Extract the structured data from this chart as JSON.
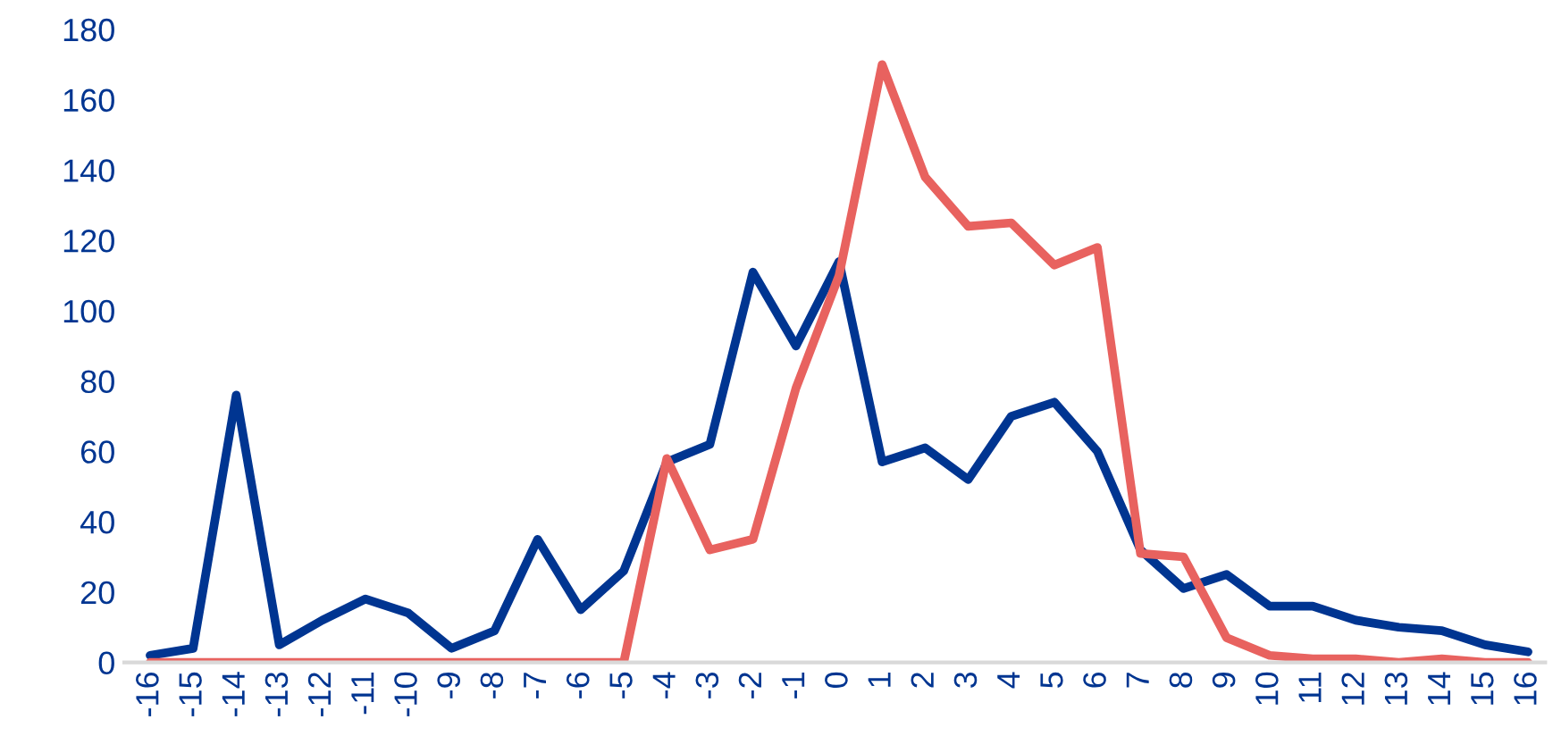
{
  "chart_data": {
    "type": "line",
    "categories": [
      "-16",
      "-15",
      "-14",
      "-13",
      "-12",
      "-11",
      "-10",
      "-9",
      "-8",
      "-7",
      "-6",
      "-5",
      "-4",
      "-3",
      "-2",
      "-1",
      "0",
      "1",
      "2",
      "3",
      "4",
      "5",
      "6",
      "7",
      "8",
      "9",
      "10",
      "11",
      "12",
      "13",
      "14",
      "15",
      "16"
    ],
    "series": [
      {
        "color": "#003591",
        "values": [
          2,
          4,
          76,
          5,
          12,
          18,
          14,
          4,
          9,
          35,
          15,
          26,
          57,
          62,
          111,
          90,
          114,
          57,
          61,
          52,
          70,
          74,
          60,
          32,
          21,
          25,
          16,
          16,
          12,
          10,
          9,
          5,
          3
        ]
      },
      {
        "color": "#e8625f",
        "values": [
          0,
          0,
          0,
          0,
          0,
          0,
          0,
          0,
          0,
          0,
          0,
          0,
          58,
          32,
          35,
          78,
          110,
          170,
          138,
          124,
          125,
          113,
          118,
          31,
          30,
          7,
          2,
          1,
          1,
          0,
          1,
          0,
          0
        ]
      }
    ],
    "ylim": [
      0,
      180
    ],
    "yticks": [
      0,
      20,
      40,
      60,
      80,
      100,
      120,
      140,
      160,
      180
    ],
    "grid": false,
    "legend": false,
    "marker": "none",
    "line_style": "solid"
  }
}
